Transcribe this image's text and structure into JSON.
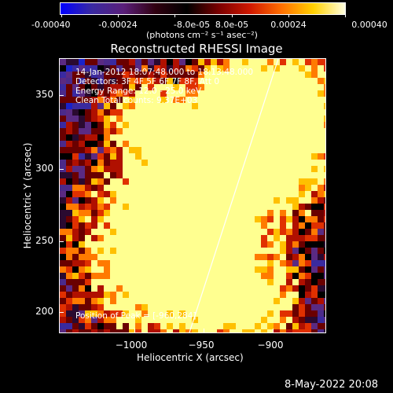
{
  "colorbar": {
    "ticks": [
      "-0.00040",
      "-0.00024",
      "-8.0e-05",
      "8.0e-05",
      "0.00024",
      "0.00040"
    ],
    "units": "(photons cm⁻² s⁻¹ asec⁻²)",
    "colors": [
      "#0000ff",
      "#3a2aa0",
      "#5a1f7a",
      "#300010",
      "#000000",
      "#7a0000",
      "#d01800",
      "#ff7000",
      "#ffd000",
      "#ffffe0"
    ]
  },
  "title": "Reconstructed RHESSI Image",
  "annotations": {
    "time": "14-Jan-2012 18:07:48.000 to 18:13:48.000",
    "detectors": "Detectors: 3F 4F 5F 6F 7F 8F, Att 0",
    "energy": "Energy Range: 12.0 - 25.0 keV",
    "clean": "Clean     Total counts: 9.37E+03",
    "peak": "Position of Peak = [-960,284]"
  },
  "axes": {
    "xlabel": "Heliocentric X (arcsec)",
    "ylabel": "Heliocentric Y (arcsec)",
    "xticks": [
      "−1000",
      "−950",
      "−900"
    ],
    "yticks": [
      "350",
      "300",
      "250",
      "200"
    ]
  },
  "footer": {
    "date": "8-May-2022 20:08"
  }
}
